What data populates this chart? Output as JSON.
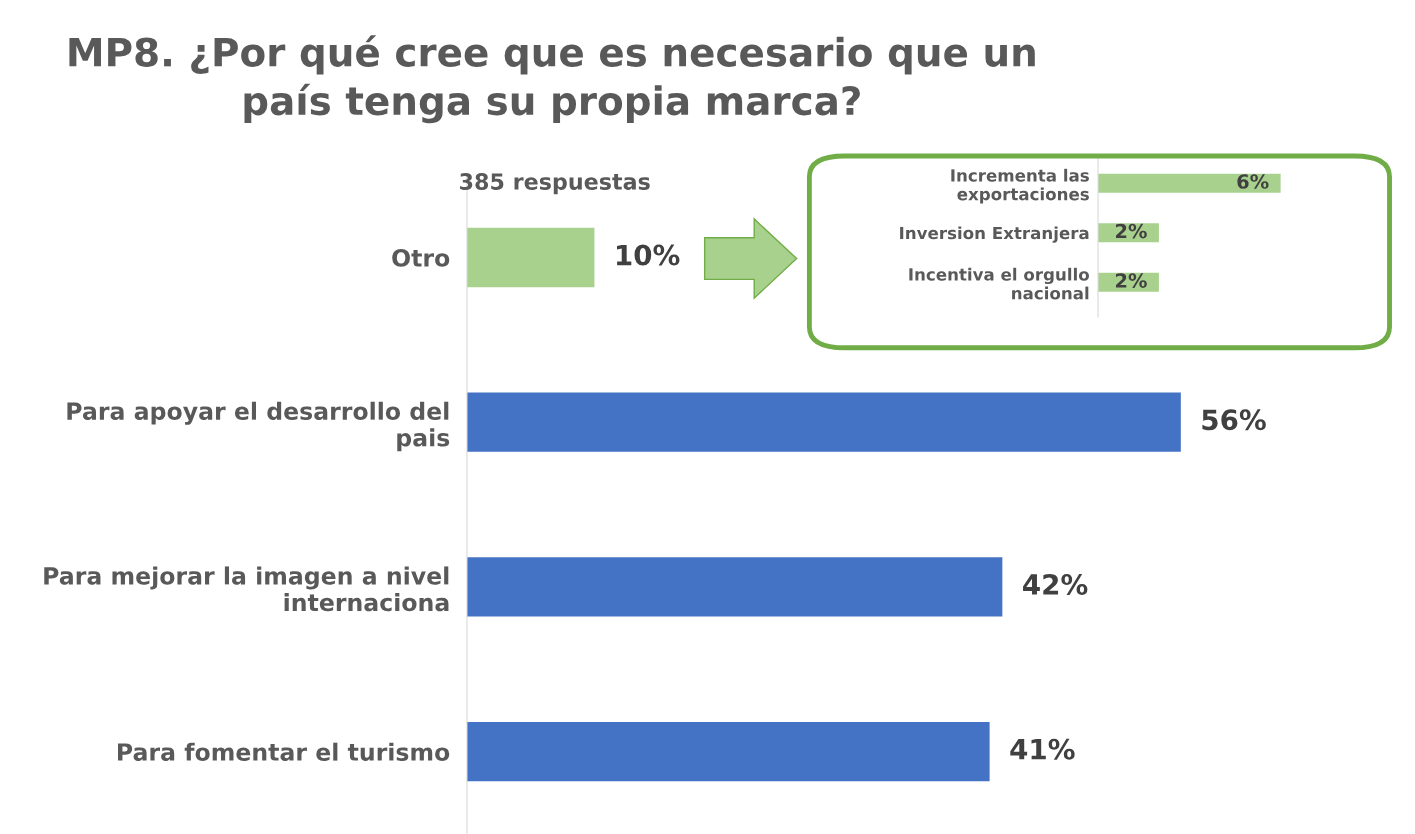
{
  "chart_data": [
    {
      "type": "bar",
      "orientation": "horizontal",
      "title": "MP8. ¿Por qué cree que es necesario que un\npaís tenga su propia marca?",
      "subtitle": "385 respuestas",
      "categories": [
        "Otro",
        "Para apoyar el desarrollo del\npais",
        "Para mejorar la imagen a nivel\ninternaciona",
        "Para fomentar el turismo"
      ],
      "values": [
        10,
        56,
        42,
        41
      ],
      "colors": [
        "#a9d18e",
        "#4472c4",
        "#4472c4",
        "#4472c4"
      ],
      "value_labels": [
        "10%",
        "56%",
        "42%",
        "41%"
      ],
      "grid": false,
      "legend": false
    },
    {
      "type": "bar",
      "orientation": "horizontal",
      "categories": [
        "Incrementa las\nexportaciones",
        "Inversion Extranjera",
        "Incentiva el orgullo\nnacional"
      ],
      "values": [
        6,
        2,
        2
      ],
      "colors": [
        "#a9d18e",
        "#a9d18e",
        "#a9d18e"
      ],
      "value_labels": [
        "6%",
        "2%",
        "2%"
      ],
      "grid": false,
      "legend": false
    }
  ]
}
